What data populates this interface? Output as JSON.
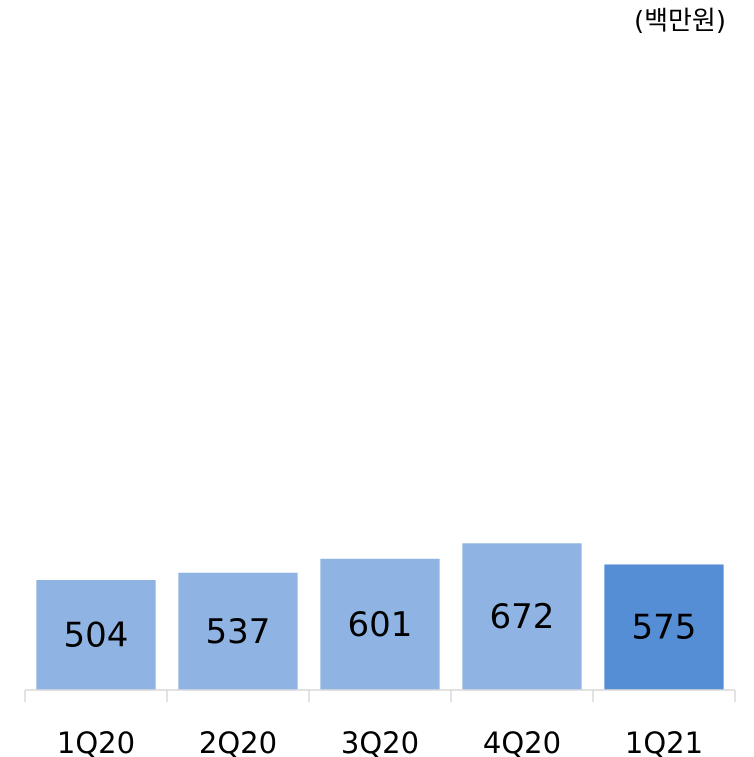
{
  "chart_data": {
    "type": "bar",
    "unit_label": "(백만원)",
    "categories": [
      "1Q20",
      "2Q20",
      "3Q20",
      "4Q20",
      "1Q21"
    ],
    "values": [
      504,
      537,
      601,
      672,
      575
    ],
    "colors": [
      "#8fb4e3",
      "#8fb4e3",
      "#8fb4e3",
      "#8fb4e3",
      "#558ed5"
    ],
    "ylim": [
      0,
      3000
    ]
  }
}
